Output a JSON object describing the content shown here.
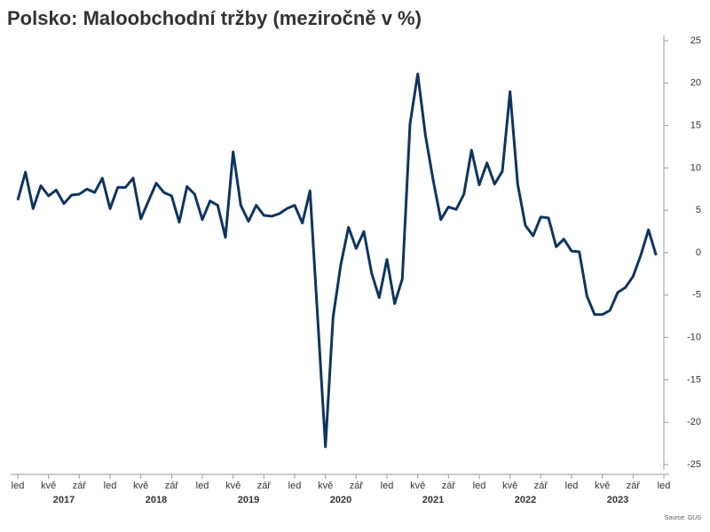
{
  "chart_data": {
    "type": "line",
    "title": "Polsko: Maloobchodní tržby (meziročně v %)",
    "source": "Source: GUS",
    "categories": [
      "led",
      null,
      null,
      null,
      "kvě",
      null,
      null,
      null,
      "zář",
      null,
      null,
      null,
      "led",
      null,
      null,
      null,
      "kvě",
      null,
      null,
      null,
      "zář",
      null,
      null,
      null,
      "led",
      null,
      null,
      null,
      "kvě",
      null,
      null,
      null,
      "zář",
      null,
      null,
      null,
      "led",
      null,
      null,
      null,
      "kvě",
      null,
      null,
      null,
      "zář",
      null,
      null,
      null,
      "led",
      null,
      null,
      null,
      "kvě",
      null,
      null,
      null,
      "zář",
      null,
      null,
      null,
      "led",
      null,
      null,
      null,
      "kvě",
      null,
      null,
      null,
      "zář",
      null,
      null,
      null,
      "led",
      null,
      null,
      null,
      "kvě",
      null,
      null,
      null,
      "zář",
      null,
      null,
      null,
      "led"
    ],
    "years": [
      "2017",
      "2018",
      "2019",
      "2020",
      "2021",
      "2022",
      "2023"
    ],
    "series": [
      {
        "name": "Maloobchodní tržby",
        "color": "#0e3560",
        "values": [
          6.2,
          9.5,
          5.2,
          7.9,
          6.7,
          7.4,
          5.8,
          6.8,
          6.9,
          7.5,
          7.1,
          8.8,
          5.2,
          7.7,
          7.7,
          8.8,
          4.0,
          6.1,
          8.2,
          7.1,
          6.7,
          3.6,
          7.8,
          6.9,
          3.9,
          6.1,
          5.6,
          1.8,
          11.9,
          5.6,
          3.7,
          5.6,
          4.4,
          4.3,
          4.6,
          5.2,
          5.6,
          3.5,
          7.3,
          -7.8,
          -22.9,
          -7.6,
          -1.4,
          3.0,
          0.5,
          2.5,
          -2.4,
          -5.3,
          -0.8,
          -6.0,
          -3.1,
          15.2,
          21.1,
          13.9,
          8.6,
          3.9,
          5.4,
          5.1,
          6.9,
          12.1,
          8.0,
          10.6,
          8.1,
          9.6,
          19.0,
          8.1,
          3.2,
          2.0,
          4.2,
          4.1,
          0.7,
          1.6,
          0.2,
          0.1,
          -5.1,
          -7.3,
          -7.3,
          -6.8,
          -4.7,
          -4.1,
          -2.8,
          -0.3,
          2.7,
          -0.3,
          null
        ]
      }
    ],
    "ylim": [
      -25,
      25
    ],
    "yticks": [
      -25,
      -20,
      -15,
      -10,
      -5,
      0,
      5,
      10,
      15,
      20,
      25
    ],
    "grid": false
  }
}
